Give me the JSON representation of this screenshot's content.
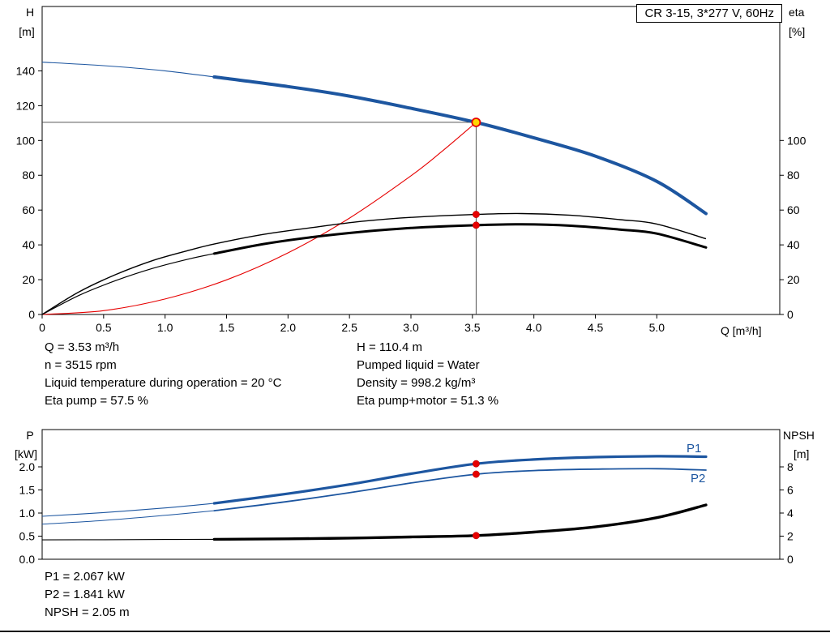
{
  "header": {
    "title": "CR 3-15, 3*277 V, 60Hz"
  },
  "colors": {
    "blue": "#1d56a0",
    "black": "#000000",
    "red": "#e60000",
    "marker_red": "#e60000",
    "marker_yellow": "#ffd800",
    "crosshair": "#404040"
  },
  "chart_data": [
    {
      "type": "line",
      "name": "hq-eta-chart",
      "title": "CR 3-15, 3*277 V, 60Hz",
      "x_axis": {
        "label": "Q [m³/h]",
        "min": 0,
        "max": 6,
        "ticks": [
          {
            "v": 0,
            "t": "0"
          },
          {
            "v": 0.5,
            "t": "0.5"
          },
          {
            "v": 1,
            "t": "1.0"
          },
          {
            "v": 1.5,
            "t": "1.5"
          },
          {
            "v": 2,
            "t": "2.0"
          },
          {
            "v": 2.5,
            "t": "2.5"
          },
          {
            "v": 3,
            "t": "3.0"
          },
          {
            "v": 3.5,
            "t": "3.5"
          },
          {
            "v": 4,
            "t": "4.0"
          },
          {
            "v": 4.5,
            "t": "4.5"
          },
          {
            "v": 5,
            "t": "5.0"
          }
        ]
      },
      "y_left": {
        "title": "H",
        "unit": "[m]",
        "min": 0,
        "max": 177,
        "ticks": [
          {
            "v": 0,
            "t": "0"
          },
          {
            "v": 20,
            "t": "20"
          },
          {
            "v": 40,
            "t": "40"
          },
          {
            "v": 60,
            "t": "60"
          },
          {
            "v": 80,
            "t": "80"
          },
          {
            "v": 100,
            "t": "100"
          },
          {
            "v": 120,
            "t": "120"
          },
          {
            "v": 140,
            "t": "140"
          }
        ]
      },
      "y_right": {
        "title": "eta",
        "unit": "[%]",
        "min": 0,
        "max": 177,
        "ticks": [
          {
            "v": 0,
            "t": "0"
          },
          {
            "v": 20,
            "t": "20"
          },
          {
            "v": 40,
            "t": "40"
          },
          {
            "v": 60,
            "t": "60"
          },
          {
            "v": 80,
            "t": "80"
          },
          {
            "v": 100,
            "t": "100"
          }
        ]
      },
      "series": [
        {
          "name": "system-curve",
          "color": "red",
          "width": 1.1,
          "axis": "left",
          "points": [
            [
              0,
              0
            ],
            [
              0.5,
              2.2
            ],
            [
              1,
              8.9
            ],
            [
              1.5,
              19.9
            ],
            [
              2,
              35.4
            ],
            [
              2.5,
              55.4
            ],
            [
              3,
              79.7
            ],
            [
              3.25,
              93.6
            ],
            [
              3.53,
              110.4
            ]
          ]
        },
        {
          "name": "eta-pump",
          "color": "black",
          "width": 1.4,
          "axis": "left",
          "points": [
            [
              0,
              0
            ],
            [
              0.3,
              13
            ],
            [
              0.6,
              23
            ],
            [
              0.9,
              31
            ],
            [
              1.2,
              37
            ],
            [
              1.4,
              40.5
            ],
            [
              1.8,
              46
            ],
            [
              2.2,
              50
            ],
            [
              2.6,
              53.5
            ],
            [
              3,
              55.8
            ],
            [
              3.53,
              57.5
            ],
            [
              3.9,
              58
            ],
            [
              4.3,
              57
            ],
            [
              4.7,
              54.5
            ],
            [
              5,
              52
            ],
            [
              5.4,
              43.5
            ]
          ]
        },
        {
          "name": "eta-pump-motor",
          "color": "black",
          "width": 3,
          "thin_width": 1.2,
          "thin_until": 1.4,
          "axis": "left",
          "points": [
            [
              0,
              0
            ],
            [
              0.3,
              11
            ],
            [
              0.6,
              19.5
            ],
            [
              0.9,
              26.5
            ],
            [
              1.2,
              32
            ],
            [
              1.4,
              35
            ],
            [
              1.8,
              40.5
            ],
            [
              2.2,
              44.5
            ],
            [
              2.6,
              47.5
            ],
            [
              3,
              49.7
            ],
            [
              3.53,
              51.3
            ],
            [
              3.9,
              51.8
            ],
            [
              4.3,
              51
            ],
            [
              4.7,
              48.8
            ],
            [
              5,
              46.5
            ],
            [
              5.4,
              38.5
            ]
          ]
        },
        {
          "name": "head",
          "color": "blue",
          "width": 4,
          "thin_width": 1.1,
          "thin_until": 1.4,
          "axis": "left",
          "points": [
            [
              0,
              145
            ],
            [
              0.5,
              143
            ],
            [
              1,
              140
            ],
            [
              1.4,
              136.5
            ],
            [
              2,
              131
            ],
            [
              2.5,
              125.5
            ],
            [
              3,
              118.5
            ],
            [
              3.53,
              110.4
            ],
            [
              4,
              101.5
            ],
            [
              4.5,
              91
            ],
            [
              5,
              76.5
            ],
            [
              5.4,
              58
            ]
          ]
        }
      ],
      "crosshair": {
        "v_x": 3.53,
        "h_y": 110.4
      },
      "markers": [
        {
          "q": 3.53,
          "v": 110.4,
          "axis": "left",
          "style": "duty"
        },
        {
          "q": 3.53,
          "v": 57.5,
          "axis": "left",
          "style": "dot"
        },
        {
          "q": 3.53,
          "v": 51.3,
          "axis": "left",
          "style": "dot"
        }
      ]
    },
    {
      "type": "line",
      "name": "power-npsh-chart",
      "x_axis": {
        "label": "",
        "min": 0,
        "max": 6,
        "ticks": []
      },
      "y_left": {
        "title": "P",
        "unit": "[kW]",
        "min": 0,
        "max": 2.807,
        "ticks": [
          {
            "v": 0,
            "t": "0.0"
          },
          {
            "v": 0.5,
            "t": "0.5"
          },
          {
            "v": 1,
            "t": "1.0"
          },
          {
            "v": 1.5,
            "t": "1.5"
          },
          {
            "v": 2,
            "t": "2.0"
          }
        ]
      },
      "y_right": {
        "title": "NPSH",
        "unit": "[m]",
        "min": 0,
        "max": 11.23,
        "ticks": [
          {
            "v": 0,
            "t": "0"
          },
          {
            "v": 2,
            "t": "2"
          },
          {
            "v": 4,
            "t": "4"
          },
          {
            "v": 6,
            "t": "6"
          },
          {
            "v": 8,
            "t": "8"
          }
        ]
      },
      "series": [
        {
          "name": "p1",
          "label": "P1",
          "color": "blue",
          "width": 3.2,
          "thin_width": 1.1,
          "thin_until": 1.4,
          "axis": "left",
          "points": [
            [
              0,
              0.93
            ],
            [
              0.5,
              1.01
            ],
            [
              1,
              1.11
            ],
            [
              1.4,
              1.21
            ],
            [
              2,
              1.42
            ],
            [
              2.5,
              1.62
            ],
            [
              3,
              1.85
            ],
            [
              3.53,
              2.067
            ],
            [
              4,
              2.16
            ],
            [
              4.5,
              2.21
            ],
            [
              5,
              2.23
            ],
            [
              5.4,
              2.22
            ]
          ]
        },
        {
          "name": "p2",
          "label": "P2",
          "color": "blue",
          "width": 1.8,
          "thin_width": 1.0,
          "thin_until": 1.4,
          "axis": "left",
          "points": [
            [
              0,
              0.76
            ],
            [
              0.5,
              0.84
            ],
            [
              1,
              0.95
            ],
            [
              1.4,
              1.05
            ],
            [
              2,
              1.25
            ],
            [
              2.5,
              1.44
            ],
            [
              3,
              1.65
            ],
            [
              3.53,
              1.841
            ],
            [
              4,
              1.92
            ],
            [
              4.5,
              1.95
            ],
            [
              5,
              1.96
            ],
            [
              5.4,
              1.93
            ]
          ]
        },
        {
          "name": "npsh",
          "label": "NPSH",
          "color": "black",
          "width": 3.4,
          "thin_width": 1.1,
          "thin_until": 1.4,
          "axis": "right",
          "points": [
            [
              0,
              1.68
            ],
            [
              0.5,
              1.69
            ],
            [
              1,
              1.71
            ],
            [
              1.4,
              1.73
            ],
            [
              2,
              1.77
            ],
            [
              2.5,
              1.83
            ],
            [
              3,
              1.93
            ],
            [
              3.53,
              2.05
            ],
            [
              4,
              2.35
            ],
            [
              4.5,
              2.8
            ],
            [
              5,
              3.6
            ],
            [
              5.4,
              4.7
            ]
          ]
        }
      ],
      "markers": [
        {
          "q": 3.53,
          "v": 2.067,
          "axis": "left",
          "style": "dot"
        },
        {
          "q": 3.53,
          "v": 1.841,
          "axis": "left",
          "style": "dot"
        },
        {
          "q": 3.53,
          "v": 2.05,
          "axis": "right",
          "style": "dot"
        }
      ]
    }
  ],
  "annotations": {
    "operating_point_left": [
      "Q = 3.53 m³/h",
      "n = 3515 rpm",
      "Liquid temperature during operation = 20 °C",
      "Eta pump = 57.5 %"
    ],
    "operating_point_right": [
      "H = 110.4 m",
      "Pumped liquid = Water",
      "Density = 998.2 kg/m³",
      "Eta pump+motor = 51.3 %"
    ],
    "power_npsh": [
      "P1 = 2.067 kW",
      "P2 = 1.841 kW",
      "NPSH = 2.05 m"
    ]
  }
}
